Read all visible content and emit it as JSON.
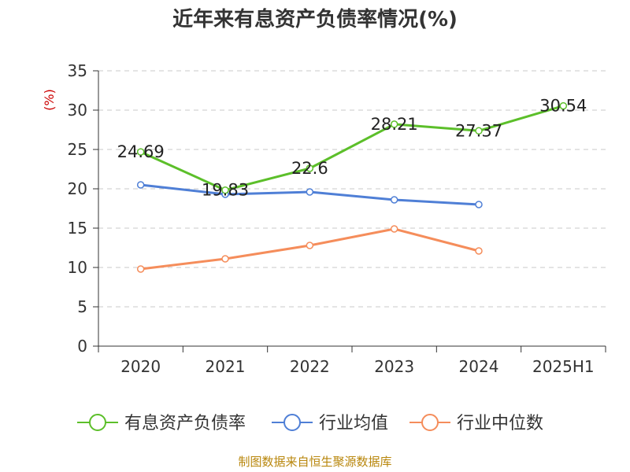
{
  "chart_data": {
    "type": "line",
    "title": "近年来有息资产负债率情况(%)",
    "ylabel": "(%)",
    "xlabel": "",
    "categories": [
      "2020",
      "2021",
      "2022",
      "2023",
      "2024",
      "2025H1"
    ],
    "ylim": [
      0,
      35
    ],
    "yticks": [
      0,
      5,
      10,
      15,
      20,
      25,
      30,
      35
    ],
    "grid": true,
    "legend_position": "bottom",
    "series": [
      {
        "name": "有息资产负债率",
        "color": "#5cbf2a",
        "values": [
          24.69,
          19.83,
          22.6,
          28.21,
          27.37,
          30.54
        ],
        "labels": [
          "24.69",
          "19.83",
          "22.6",
          "28.21",
          "27.37",
          "30.54"
        ],
        "show_labels": true
      },
      {
        "name": "行业均值",
        "color": "#4f7fd6",
        "values": [
          20.5,
          19.3,
          19.6,
          18.6,
          18.0,
          null
        ],
        "show_labels": false
      },
      {
        "name": "行业中位数",
        "color": "#f58d5b",
        "values": [
          9.8,
          11.1,
          12.8,
          14.9,
          12.1,
          null
        ],
        "show_labels": false
      }
    ]
  },
  "source_text": "制图数据来自恒生聚源数据库"
}
